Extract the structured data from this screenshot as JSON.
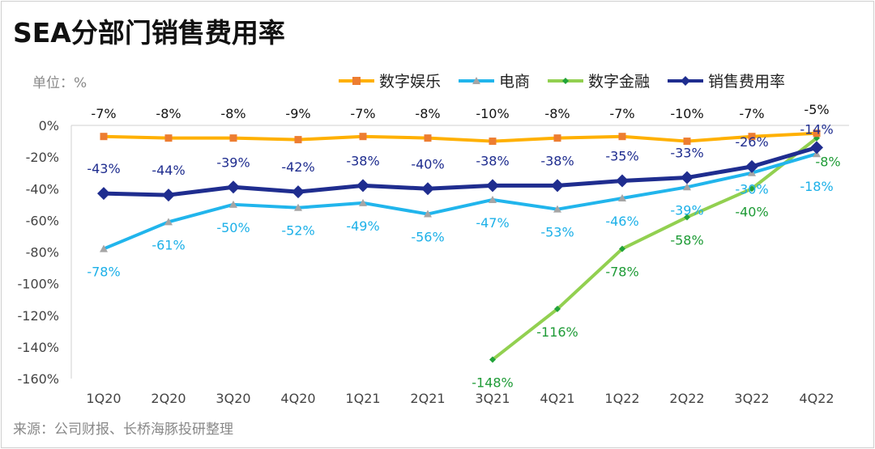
{
  "header": {
    "title": "SEA分部门销售费用率",
    "unit": "单位：%"
  },
  "footer": {
    "source": "来源：公司财报、长桥海豚投研整理"
  },
  "chart_data": {
    "type": "line",
    "title": "SEA分部门销售费用率",
    "categories": [
      "1Q20",
      "2Q20",
      "3Q20",
      "4Q20",
      "1Q21",
      "2Q21",
      "3Q21",
      "4Q21",
      "1Q22",
      "2Q22",
      "3Q22",
      "4Q22"
    ],
    "ylim": [
      -160,
      0
    ],
    "yticks": [
      0,
      -20,
      -40,
      -60,
      -80,
      -100,
      -120,
      -140,
      -160
    ],
    "ytick_labels": [
      "0%",
      "-20%",
      "-40%",
      "-60%",
      "-80%",
      "-100%",
      "-120%",
      "-140%",
      "-160%"
    ],
    "grid": false,
    "legend_position": "top",
    "series": [
      {
        "name": "数字娱乐",
        "color": "#FFB000",
        "marker": "square",
        "marker_color": "#ED7D31",
        "values": [
          -7,
          -8,
          -8,
          -9,
          -7,
          -8,
          -10,
          -8,
          -7,
          -10,
          -7,
          -5
        ],
        "labels": [
          "-7%",
          "-8%",
          "-8%",
          "-9%",
          "-7%",
          "-8%",
          "-10%",
          "-8%",
          "-7%",
          "-10%",
          "-7%",
          "-5%"
        ],
        "label_color": "#111111"
      },
      {
        "name": "电商",
        "color": "#21B5EC",
        "marker": "triangle",
        "marker_color": "#A5A5A5",
        "values": [
          -78,
          -61,
          -50,
          -52,
          -49,
          -56,
          -47,
          -53,
          -46,
          -39,
          -30,
          -18
        ],
        "labels": [
          "-78%",
          "-61%",
          "-50%",
          "-52%",
          "-49%",
          "-56%",
          "-47%",
          "-53%",
          "-46%",
          "-39%",
          "-30%",
          "-18%"
        ],
        "label_color": "#1CB0E8"
      },
      {
        "name": "数字金融",
        "color": "#92D050",
        "marker": "diamond",
        "marker_color": "#22A33A",
        "values": [
          null,
          null,
          null,
          null,
          null,
          null,
          -148,
          -116,
          -78,
          -58,
          -40,
          -8
        ],
        "labels": [
          "",
          "",
          "",
          "",
          "",
          "",
          "-148%",
          "-116%",
          "-78%",
          "-58%",
          "-40%",
          "-8%"
        ],
        "label_color": "#1E9B36"
      },
      {
        "name": "销售费用率",
        "color": "#1F2D8F",
        "marker": "diamond",
        "marker_color": "#1F2D8F",
        "values": [
          -43,
          -44,
          -39,
          -42,
          -38,
          -40,
          -38,
          -38,
          -35,
          -33,
          -26,
          -14
        ],
        "labels": [
          "-43%",
          "-44%",
          "-39%",
          "-42%",
          "-38%",
          "-40%",
          "-38%",
          "-38%",
          "-35%",
          "-33%",
          "-26%",
          "-14%"
        ],
        "label_color": "#1F2D8F"
      }
    ]
  }
}
